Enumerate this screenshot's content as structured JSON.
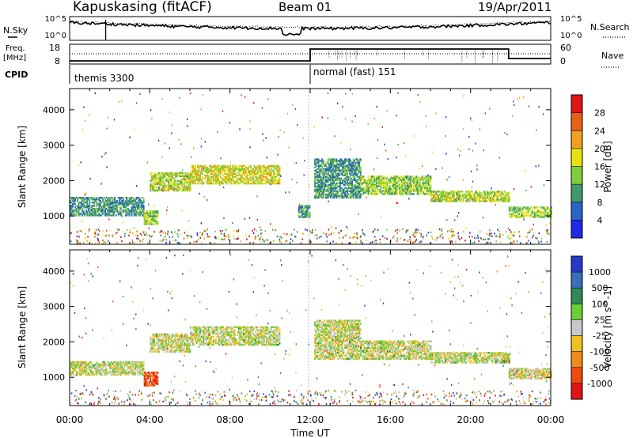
{
  "header": {
    "station": "Kapuskasing (fitACF)",
    "beam": "Beam 01",
    "date": "19/Apr/2011"
  },
  "noise_panel": {
    "left_label": "N.Sky",
    "left_ticks": [
      "10^5",
      "10^0"
    ],
    "right_label": "N.Search",
    "right_ticks": [
      "10^5",
      "10^0"
    ]
  },
  "freq_panel": {
    "left_label": "Freq.",
    "left_unit": "[MHz]",
    "left_ticks": [
      "18",
      "8"
    ],
    "right_label": "Nave",
    "right_ticks": [
      "60",
      "0"
    ]
  },
  "cpid": {
    "label": "CPID",
    "modes": [
      {
        "name": "themis 3300",
        "start_hour": 0
      },
      {
        "name": "normal (fast) 151",
        "start_hour": 12
      }
    ]
  },
  "chart_data": [
    {
      "type": "heatmap",
      "panel": "power",
      "xlabel": "Time UT",
      "ylabel": "Slant Range [km]",
      "xlim": [
        0,
        24
      ],
      "ylim": [
        200,
        4600
      ],
      "yticks": [
        1000,
        2000,
        3000,
        4000
      ],
      "colorbar_label": "Power [dB]",
      "colorbar_ticks": [
        "4",
        "8",
        "12",
        "16",
        "20",
        "24",
        "28"
      ],
      "colorbar_colors": [
        "#1e2ce6",
        "#2a64c8",
        "#3e9a6a",
        "#7fcf3c",
        "#e8e214",
        "#f0a020",
        "#e86018",
        "#e01414"
      ],
      "echo_bands": [
        {
          "t0": 0.0,
          "t1": 3.7,
          "r0": 1000,
          "r1": 1500,
          "level": 0.3
        },
        {
          "t0": 3.7,
          "t1": 4.4,
          "r0": 750,
          "r1": 1150,
          "level": 0.45
        },
        {
          "t0": 4.0,
          "t1": 6.0,
          "r0": 1700,
          "r1": 2200,
          "level": 0.5
        },
        {
          "t0": 6.0,
          "t1": 10.5,
          "r0": 1900,
          "r1": 2400,
          "level": 0.55
        },
        {
          "t0": 11.4,
          "t1": 12.0,
          "r0": 950,
          "r1": 1300,
          "level": 0.3
        },
        {
          "t0": 12.2,
          "t1": 14.5,
          "r0": 1500,
          "r1": 2600,
          "level": 0.3
        },
        {
          "t0": 14.5,
          "t1": 18.0,
          "r0": 1600,
          "r1": 2100,
          "level": 0.45
        },
        {
          "t0": 18.0,
          "t1": 21.9,
          "r0": 1400,
          "r1": 1700,
          "level": 0.5
        },
        {
          "t0": 21.9,
          "t1": 24.0,
          "r0": 950,
          "r1": 1250,
          "level": 0.45
        }
      ]
    },
    {
      "type": "heatmap",
      "panel": "velocity",
      "xlabel": "Time UT",
      "ylabel": "Slant Range [km]",
      "xlim": [
        0,
        24
      ],
      "ylim": [
        200,
        4600
      ],
      "yticks": [
        1000,
        2000,
        3000,
        4000
      ],
      "xticks": [
        "00:00",
        "04:00",
        "08:00",
        "12:00",
        "16:00",
        "20:00",
        "00:00"
      ],
      "colorbar_label": "Velocity [m s^-1]",
      "colorbar_ticks": [
        "1000",
        "500",
        "100",
        "25",
        "-25",
        "-100",
        "-500",
        "-1000"
      ],
      "colorbar_colors": [
        "#2a38c8",
        "#3a70b8",
        "#2e8a58",
        "#6ad034",
        "#c8c8c8",
        "#f0c020",
        "#f08a18",
        "#f04a10",
        "#e01414"
      ],
      "echo_bands": [
        {
          "t0": 0.0,
          "t1": 3.7,
          "r0": 1050,
          "r1": 1450,
          "level": 0.5
        },
        {
          "t0": 3.7,
          "t1": 4.4,
          "r0": 750,
          "r1": 1150,
          "level": 0.85
        },
        {
          "t0": 4.0,
          "t1": 6.0,
          "r0": 1700,
          "r1": 2200,
          "level": 0.5
        },
        {
          "t0": 6.0,
          "t1": 10.5,
          "r0": 1900,
          "r1": 2400,
          "level": 0.5
        },
        {
          "t0": 12.2,
          "t1": 14.5,
          "r0": 1500,
          "r1": 2600,
          "level": 0.5
        },
        {
          "t0": 14.5,
          "t1": 18.0,
          "r0": 1500,
          "r1": 2000,
          "level": 0.5
        },
        {
          "t0": 18.0,
          "t1": 21.9,
          "r0": 1400,
          "r1": 1700,
          "level": 0.5
        },
        {
          "t0": 21.9,
          "t1": 24.0,
          "r0": 950,
          "r1": 1250,
          "level": 0.55
        }
      ]
    }
  ]
}
